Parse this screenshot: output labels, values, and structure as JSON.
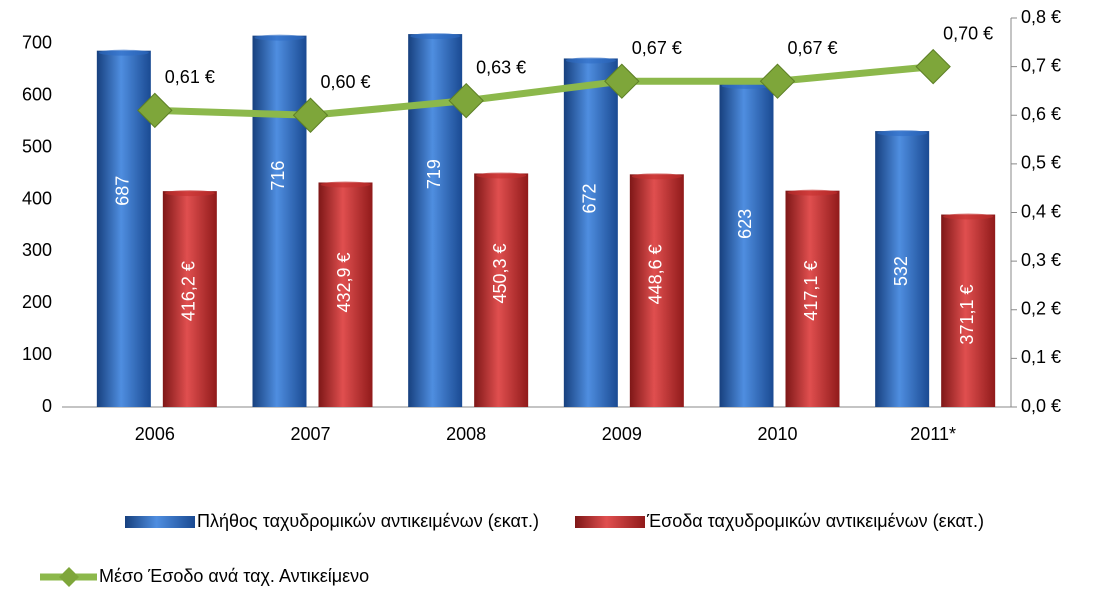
{
  "chart_data": {
    "type": "bar_line",
    "categories": [
      "2006",
      "2007",
      "2008",
      "2009",
      "2010",
      "2011*"
    ],
    "series": [
      {
        "name": "Πλήθος ταχυδρομικών αντικειμένων (εκατ.)",
        "type": "bar",
        "color": "#2f6cc5",
        "values": [
          687,
          716,
          719,
          672,
          623,
          532
        ]
      },
      {
        "name": "Έσοδα ταχυδρομικών αντικειμένων (εκατ.)",
        "type": "bar",
        "color": "#c4302e",
        "values": [
          416.2,
          432.9,
          450.3,
          448.6,
          417.1,
          371.1
        ],
        "value_labels": [
          "416,2 €",
          "432,9 €",
          "450,3 €",
          "448,6 €",
          "417,1 €",
          "371,1 €"
        ]
      },
      {
        "name": "Μέσο Έσοδο ανά ταχ. Αντικείμενο",
        "type": "line",
        "axis": "y2",
        "color": "#8cb84b",
        "values": [
          0.61,
          0.6,
          0.63,
          0.67,
          0.67,
          0.7
        ],
        "value_labels": [
          "0,61 €",
          "0,60 €",
          "0,63 €",
          "0,67 €",
          "0,67 €",
          "0,70 €"
        ]
      }
    ],
    "ylim": [
      0,
      750
    ],
    "yticks": [
      0,
      100,
      200,
      300,
      400,
      500,
      600,
      700
    ],
    "y2lim": [
      0,
      0.8
    ],
    "y2ticks": [
      {
        "value": 0,
        "label": "0,0 €"
      },
      {
        "value": 0.1,
        "label": "0,1 €"
      },
      {
        "value": 0.2,
        "label": "0,2 €"
      },
      {
        "value": 0.3,
        "label": "0,3 €"
      },
      {
        "value": 0.4,
        "label": "0,4 €"
      },
      {
        "value": 0.5,
        "label": "0,5 €"
      },
      {
        "value": 0.6,
        "label": "0,6 €"
      },
      {
        "value": 0.7,
        "label": "0,7 €"
      },
      {
        "value": 0.8,
        "label": "0,8 €"
      }
    ],
    "legend": "bottom"
  }
}
